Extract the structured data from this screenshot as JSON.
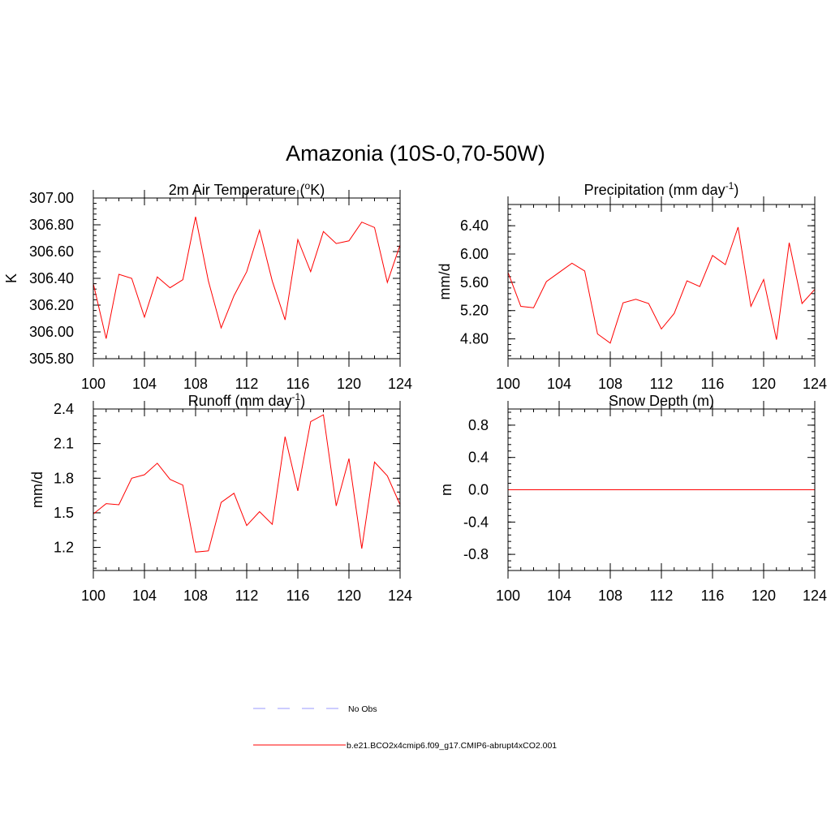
{
  "figure": {
    "title": "Amazonia (10S-0,70-50W)"
  },
  "legend": {
    "placement": "bottom-center",
    "entries": [
      {
        "label": "No Obs",
        "color": "#9999ff",
        "style": "dashed"
      },
      {
        "label": "b.e21.BCO2x4cmip6.f09_g17.CMIP6-abrupt4xCO2.001",
        "color": "#ff0000",
        "style": "solid"
      }
    ]
  },
  "chart_data": [
    {
      "type": "line",
      "title": "2m Air Temperature (",
      "title_sup": "o",
      "title_after": "K)",
      "ylabel": "K",
      "xlim": [
        100,
        124
      ],
      "ylim": [
        305.8,
        307.0
      ],
      "xticks": [
        100,
        104,
        108,
        112,
        116,
        120,
        124
      ],
      "yticks": [
        305.8,
        306.0,
        306.2,
        306.4,
        306.6,
        306.8,
        307.0
      ],
      "ytick_labels": [
        "305.80",
        "306.00",
        "306.20",
        "306.40",
        "306.60",
        "306.80",
        "307.00"
      ],
      "series": [
        {
          "color": "#ff0000",
          "x": [
            100,
            101,
            102,
            103,
            104,
            105,
            106,
            107,
            108,
            109,
            110,
            111,
            112,
            113,
            114,
            115,
            116,
            117,
            118,
            119,
            120,
            121,
            122,
            123,
            124
          ],
          "values": [
            306.36,
            305.95,
            306.43,
            306.4,
            306.11,
            306.41,
            306.33,
            306.39,
            306.86,
            306.38,
            306.03,
            306.27,
            306.45,
            306.76,
            306.38,
            306.09,
            306.69,
            306.45,
            306.75,
            306.66,
            306.68,
            306.82,
            306.78,
            306.37,
            306.65
          ]
        }
      ]
    },
    {
      "type": "line",
      "title": "Precipitation (mm day",
      "title_sup": "-1",
      "title_after": ")",
      "ylabel": "mm/d",
      "xlim": [
        100,
        124
      ],
      "ylim": [
        4.52,
        6.7
      ],
      "xticks": [
        100,
        104,
        108,
        112,
        116,
        120,
        124
      ],
      "yticks": [
        4.8,
        5.2,
        5.6,
        6.0,
        6.4
      ],
      "ytick_labels": [
        "4.80",
        "5.20",
        "5.60",
        "6.00",
        "6.40"
      ],
      "series": [
        {
          "color": "#ff0000",
          "x": [
            100,
            101,
            102,
            103,
            104,
            105,
            106,
            107,
            108,
            109,
            110,
            111,
            112,
            113,
            114,
            115,
            116,
            117,
            118,
            119,
            120,
            121,
            122,
            123,
            124
          ],
          "values": [
            5.74,
            5.26,
            5.24,
            5.61,
            5.74,
            5.87,
            5.76,
            4.87,
            4.74,
            5.31,
            5.36,
            5.3,
            4.94,
            5.16,
            5.62,
            5.54,
            5.98,
            5.85,
            6.38,
            5.26,
            5.64,
            4.79,
            6.16,
            5.3,
            5.5
          ]
        }
      ]
    },
    {
      "type": "line",
      "title": "Runoff (mm day",
      "title_sup": "-1",
      "title_after": ")",
      "ylabel": "mm/d",
      "xlim": [
        100,
        124
      ],
      "ylim": [
        1.0,
        2.4
      ],
      "xticks": [
        100,
        104,
        108,
        112,
        116,
        120,
        124
      ],
      "yticks": [
        1.2,
        1.5,
        1.8,
        2.1,
        2.4
      ],
      "ytick_labels": [
        "1.2",
        "1.5",
        "1.8",
        "2.1",
        "2.4"
      ],
      "series": [
        {
          "color": "#ff0000",
          "x": [
            100,
            101,
            102,
            103,
            104,
            105,
            106,
            107,
            108,
            109,
            110,
            111,
            112,
            113,
            114,
            115,
            116,
            117,
            118,
            119,
            120,
            121,
            122,
            123,
            124
          ],
          "values": [
            1.49,
            1.58,
            1.57,
            1.8,
            1.83,
            1.93,
            1.79,
            1.74,
            1.16,
            1.17,
            1.59,
            1.67,
            1.39,
            1.51,
            1.4,
            2.16,
            1.69,
            2.29,
            2.35,
            1.56,
            1.97,
            1.19,
            1.94,
            1.82,
            1.57
          ]
        }
      ]
    },
    {
      "type": "line",
      "title": "Snow Depth (m)",
      "title_sup": "",
      "title_after": "",
      "ylabel": "m",
      "xlim": [
        100,
        124
      ],
      "ylim": [
        -1.0,
        1.0
      ],
      "xticks": [
        100,
        104,
        108,
        112,
        116,
        120,
        124
      ],
      "yticks": [
        -0.8,
        -0.4,
        0.0,
        0.4,
        0.8
      ],
      "ytick_labels": [
        "-0.8",
        "-0.4",
        "0.0",
        "0.4",
        "0.8"
      ],
      "series": [
        {
          "color": "#ff0000",
          "x": [
            100,
            101,
            102,
            103,
            104,
            105,
            106,
            107,
            108,
            109,
            110,
            111,
            112,
            113,
            114,
            115,
            116,
            117,
            118,
            119,
            120,
            121,
            122,
            123,
            124
          ],
          "values": [
            0,
            0,
            0,
            0,
            0,
            0,
            0,
            0,
            0,
            0,
            0,
            0,
            0,
            0,
            0,
            0,
            0,
            0,
            0,
            0,
            0,
            0,
            0,
            0,
            0
          ]
        }
      ]
    }
  ]
}
